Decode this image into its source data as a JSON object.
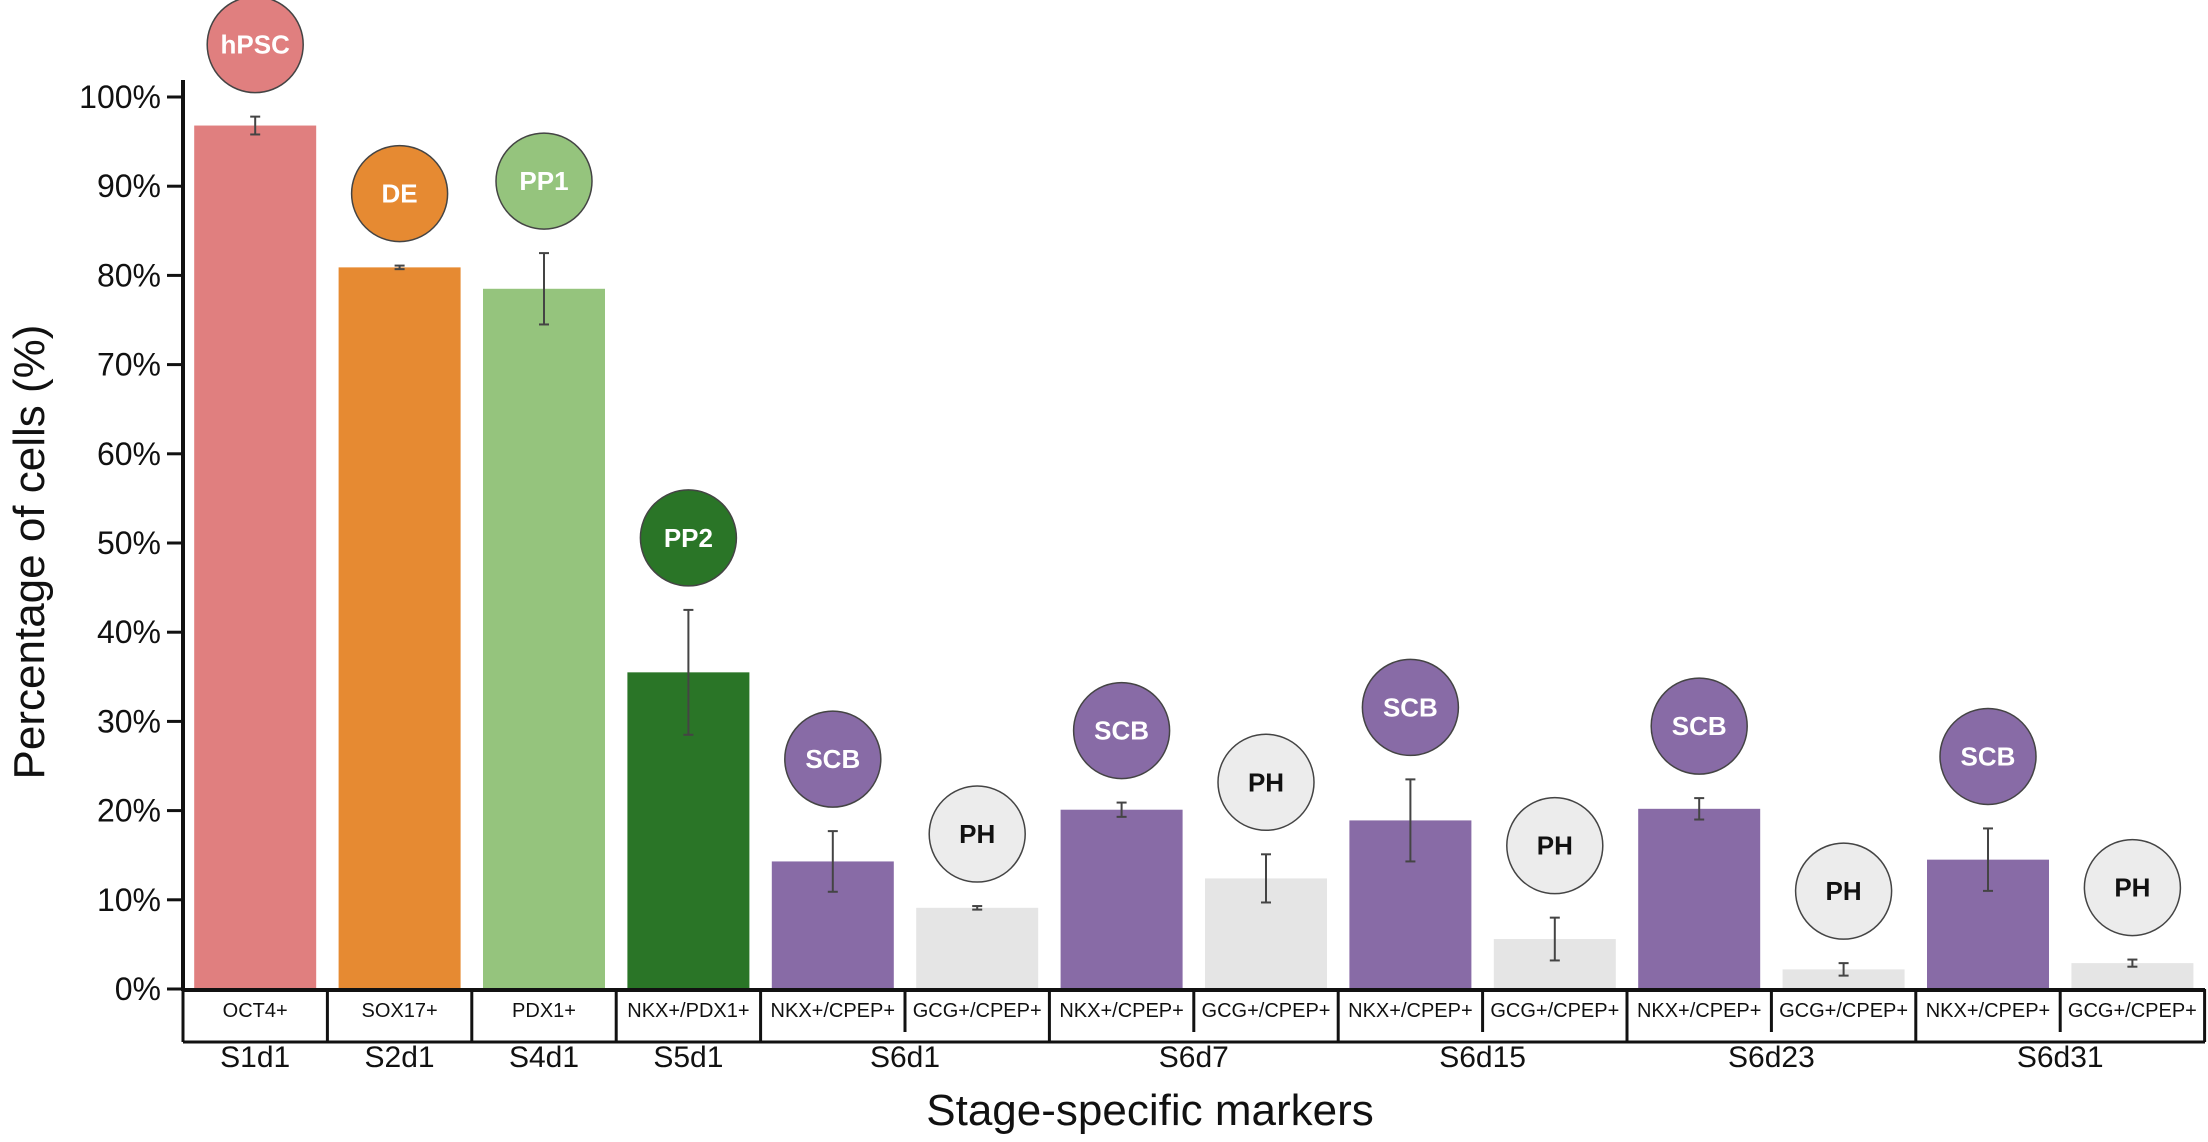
{
  "chart_data": {
    "type": "bar",
    "title": "",
    "xlabel": "Stage-specific markers",
    "ylabel": "Percentage of cells (%)",
    "ylim": [
      0,
      100
    ],
    "y_ticks": [
      "0%",
      "10%",
      "20%",
      "30%",
      "40%",
      "50%",
      "60%",
      "70%",
      "80%",
      "90%",
      "100%"
    ],
    "stages": [
      {
        "label": "S1d1",
        "bars": 1
      },
      {
        "label": "S2d1",
        "bars": 1
      },
      {
        "label": "S4d1",
        "bars": 1
      },
      {
        "label": "S5d1",
        "bars": 1
      },
      {
        "label": "S6d1",
        "bars": 2
      },
      {
        "label": "S6d7",
        "bars": 2
      },
      {
        "label": "S6d15",
        "bars": 2
      },
      {
        "label": "S6d23",
        "bars": 2
      },
      {
        "label": "S6d31",
        "bars": 2
      }
    ],
    "bars": [
      {
        "marker": "OCT4+",
        "stage": "S1d1",
        "value": 96.8,
        "error": 1.0,
        "color": "#E07F7F",
        "badge": "hPSC",
        "badge_fill": "#E07F7F",
        "badge_text_color": "#ffffff"
      },
      {
        "marker": "SOX17+",
        "stage": "S2d1",
        "value": 80.9,
        "error": 0.2,
        "color": "#E68A32",
        "badge": "DE",
        "badge_fill": "#E68A32",
        "badge_text_color": "#ffffff"
      },
      {
        "marker": "PDX1+",
        "stage": "S4d1",
        "value": 78.5,
        "error": 4.0,
        "color": "#95C47D",
        "badge": "PP1",
        "badge_fill": "#95C47D",
        "badge_text_color": "#ffffff"
      },
      {
        "marker": "NKX+/PDX1+",
        "stage": "S5d1",
        "value": 35.5,
        "error": 7.0,
        "color": "#2A7527",
        "badge": "PP2",
        "badge_fill": "#2A7527",
        "badge_text_color": "#ffffff"
      },
      {
        "marker": "NKX+/CPEP+",
        "stage": "S6d1",
        "value": 14.3,
        "error": 3.4,
        "color": "#886BA6",
        "badge": "SCB",
        "badge_fill": "#886BA6",
        "badge_text_color": "#ffffff"
      },
      {
        "marker": "GCG+/CPEP+",
        "stage": "S6d1",
        "value": 9.1,
        "error": 0.2,
        "color": "#E5E5E5",
        "badge": "PH",
        "badge_fill": "#ECECEC",
        "badge_text_color": "#111111"
      },
      {
        "marker": "NKX+/CPEP+",
        "stage": "S6d7",
        "value": 20.1,
        "error": 0.8,
        "color": "#886BA6",
        "badge": "SCB",
        "badge_fill": "#886BA6",
        "badge_text_color": "#ffffff"
      },
      {
        "marker": "GCG+/CPEP+",
        "stage": "S6d7",
        "value": 12.4,
        "error": 2.7,
        "color": "#E5E5E5",
        "badge": "PH",
        "badge_fill": "#ECECEC",
        "badge_text_color": "#111111"
      },
      {
        "marker": "NKX+/CPEP+",
        "stage": "S6d15",
        "value": 18.9,
        "error": 4.6,
        "color": "#886BA6",
        "badge": "SCB",
        "badge_fill": "#886BA6",
        "badge_text_color": "#ffffff"
      },
      {
        "marker": "GCG+/CPEP+",
        "stage": "S6d15",
        "value": 5.6,
        "error": 2.4,
        "color": "#E5E5E5",
        "badge": "PH",
        "badge_fill": "#ECECEC",
        "badge_text_color": "#111111"
      },
      {
        "marker": "NKX+/CPEP+",
        "stage": "S6d23",
        "value": 20.2,
        "error": 1.2,
        "color": "#886BA6",
        "badge": "SCB",
        "badge_fill": "#886BA6",
        "badge_text_color": "#ffffff"
      },
      {
        "marker": "GCG+/CPEP+",
        "stage": "S6d23",
        "value": 2.2,
        "error": 0.7,
        "color": "#E5E5E5",
        "badge": "PH",
        "badge_fill": "#ECECEC",
        "badge_text_color": "#111111"
      },
      {
        "marker": "NKX+/CPEP+",
        "stage": "S6d31",
        "value": 14.5,
        "error": 3.5,
        "color": "#886BA6",
        "badge": "SCB",
        "badge_fill": "#886BA6",
        "badge_text_color": "#ffffff"
      },
      {
        "marker": "GCG+/CPEP+",
        "stage": "S6d31",
        "value": 2.9,
        "error": 0.4,
        "color": "#E5E5E5",
        "badge": "PH",
        "badge_fill": "#ECECEC",
        "badge_text_color": "#111111"
      }
    ]
  }
}
